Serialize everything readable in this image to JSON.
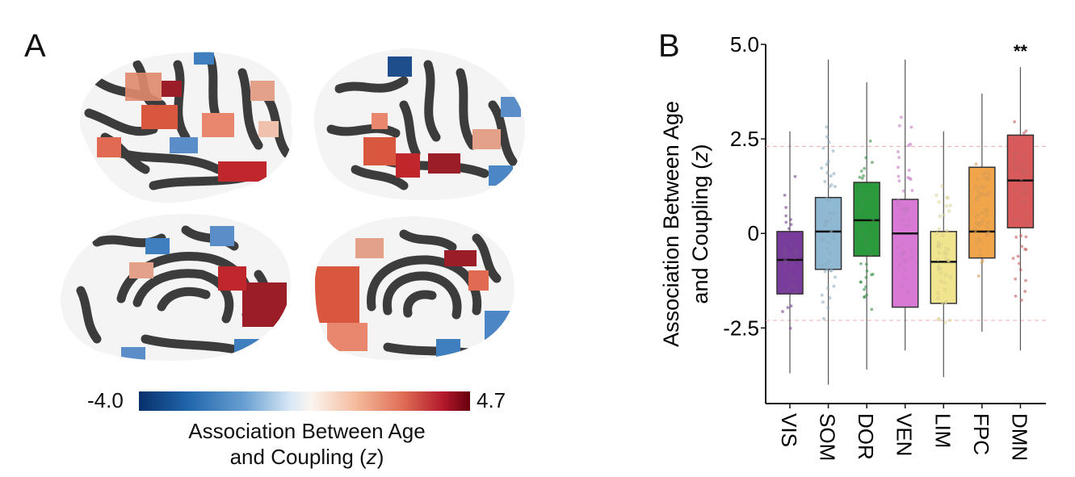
{
  "panels": {
    "a_label": "A",
    "b_label": "B"
  },
  "colorbar": {
    "min_label": "-4.0",
    "max_label": "4.7",
    "title_line1": "Association Between Age",
    "title_line2": "and Coupling (z)",
    "colors": [
      "#08306b",
      "#2166ac",
      "#6aa0d2",
      "#dbe9f6",
      "#fbf5f0",
      "#f4b99a",
      "#de6c54",
      "#b2182b",
      "#67000d"
    ]
  },
  "brain_colors": {
    "gyri": "#f4f4f4",
    "sulci": "#3c3c3c"
  },
  "chart_data": {
    "type": "box",
    "ylabel_line1": "Association Between Age",
    "ylabel_line2": "and Coupling (z)",
    "ylim": [
      -4.5,
      5.0
    ],
    "yticks": [
      5.0,
      2.5,
      0,
      -2.5
    ],
    "ytick_labels": [
      "5.0",
      "2.5",
      "0",
      "-2.5"
    ],
    "reference_lines": [
      2.3,
      -2.3
    ],
    "grid": false,
    "categories": [
      "VIS",
      "SOM",
      "DOR",
      "VEN",
      "LIM",
      "FPC",
      "DMN"
    ],
    "boxes": [
      {
        "name": "VIS",
        "q1": -1.6,
        "median": -0.7,
        "q3": 0.05,
        "whisker_low": -3.7,
        "whisker_high": 2.7,
        "color": "#7a3c9c"
      },
      {
        "name": "SOM",
        "q1": -0.95,
        "median": 0.05,
        "q3": 0.95,
        "whisker_low": -4.0,
        "whisker_high": 4.6,
        "color": "#8fb9d3"
      },
      {
        "name": "DOR",
        "q1": -0.6,
        "median": 0.35,
        "q3": 1.35,
        "whisker_low": -3.6,
        "whisker_high": 4.0,
        "color": "#2a9a3c"
      },
      {
        "name": "VEN",
        "q1": -1.95,
        "median": 0.0,
        "q3": 0.9,
        "whisker_low": -3.1,
        "whisker_high": 4.6,
        "color": "#d979d6"
      },
      {
        "name": "LIM",
        "q1": -1.85,
        "median": -0.75,
        "q3": 0.05,
        "whisker_low": -3.8,
        "whisker_high": 2.7,
        "color": "#f1e48e"
      },
      {
        "name": "FPC",
        "q1": -0.65,
        "median": 0.05,
        "q3": 1.75,
        "whisker_low": -2.6,
        "whisker_high": 3.7,
        "color": "#f0a54a"
      },
      {
        "name": "DMN",
        "q1": 0.15,
        "median": 1.4,
        "q3": 2.6,
        "whisker_low": -3.1,
        "whisker_high": 4.4,
        "color": "#d85a5a"
      }
    ],
    "annotations": [
      {
        "category": "DMN",
        "text": "**"
      }
    ]
  }
}
